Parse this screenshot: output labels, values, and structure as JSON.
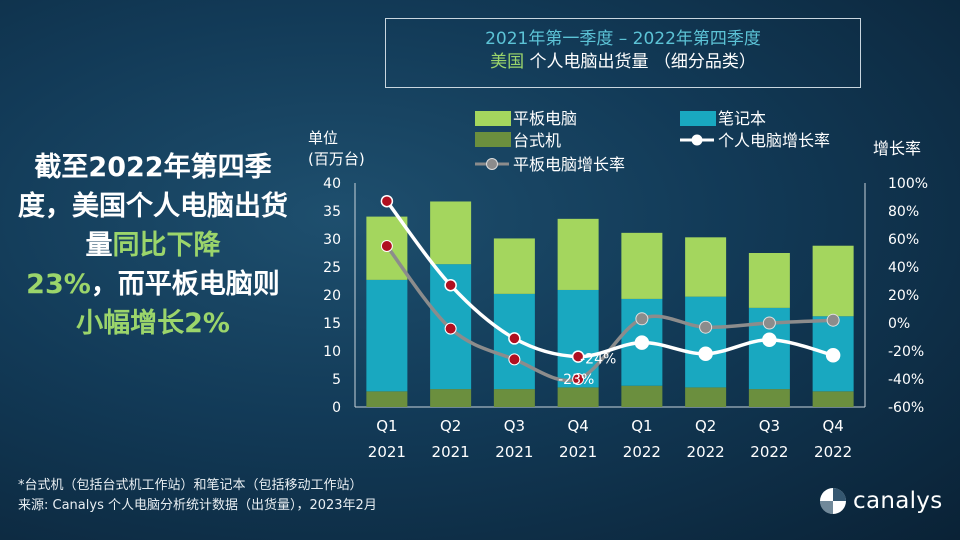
{
  "title": {
    "line1": "2021年第一季度 – 2022年第四季度",
    "line2_accent": "美国",
    "line2_rest": " 个人电脑出货量 （细分品类）"
  },
  "headline": {
    "p1": "截至",
    "p2": "2022",
    "p3": "年第四季度，美国个人电脑出货量",
    "p4": "同比下降",
    "p5": "23%",
    "p6": "，而平板电脑则",
    "p7": "小幅增长",
    "p8": "2%"
  },
  "footnote": {
    "line1": "*台式机（包括台式机工作站）和笔记本（包括移动工作站）",
    "line2": "来源: Canalys 个人电脑分析统计数据（出货量），2023年2月"
  },
  "logo": {
    "text": "canalys",
    "icon": "canalys-logo-icon"
  },
  "colors": {
    "tablet": "#a4d65e",
    "notebook": "#19a8c0",
    "desktop": "#6b8f3e",
    "pc_growth": "#ffffff",
    "tablet_growth": "#8c8c8c",
    "marker": "#b01020",
    "accent_text": "#9bd56b"
  },
  "chart_data": {
    "type": "bar",
    "categories": [
      "Q1\n2021",
      "Q2\n2021",
      "Q3\n2021",
      "Q4\n2021",
      "Q1\n2022",
      "Q2\n2022",
      "Q3\n2022",
      "Q4\n2022"
    ],
    "series": [
      {
        "name": "台式机",
        "kind": "bar",
        "values": [
          2.8,
          3.2,
          3.2,
          3.5,
          3.8,
          3.5,
          3.2,
          2.8
        ]
      },
      {
        "name": "笔记本",
        "kind": "bar",
        "values": [
          19.9,
          22.3,
          17.0,
          17.4,
          15.5,
          16.2,
          14.5,
          13.4
        ]
      },
      {
        "name": "平板电脑",
        "kind": "bar",
        "values": [
          11.3,
          11.2,
          9.9,
          12.7,
          11.8,
          10.6,
          9.8,
          12.6
        ]
      },
      {
        "name": "个人电脑增长率",
        "kind": "line",
        "axis": "right",
        "values": [
          0.87,
          0.27,
          -0.11,
          -0.24,
          -0.14,
          -0.22,
          -0.12,
          -0.23
        ]
      },
      {
        "name": "平板电脑增长率",
        "kind": "line",
        "axis": "right",
        "values": [
          0.55,
          -0.04,
          -0.26,
          -0.4,
          0.03,
          -0.03,
          0.0,
          0.02
        ]
      }
    ],
    "ylabel_left": [
      "单位",
      "(百万台)"
    ],
    "ylabel_right": "增长率",
    "ylim_left": [
      0,
      40
    ],
    "yticks_left": [
      "0",
      "5",
      "10",
      "15",
      "20",
      "25",
      "30",
      "35",
      "40"
    ],
    "ylim_right": [
      -0.6,
      1.0
    ],
    "yticks_right": [
      "-60%",
      "-40%",
      "-20%",
      "0%",
      "20%",
      "40%",
      "60%",
      "80%",
      "100%"
    ],
    "annotations": [
      "-24%",
      "-23%"
    ],
    "legend": {
      "placement": "top",
      "items": [
        "平板电脑",
        "笔记本",
        "台式机",
        "个人电脑增长率",
        "平板电脑增长率"
      ]
    },
    "grid": false
  }
}
